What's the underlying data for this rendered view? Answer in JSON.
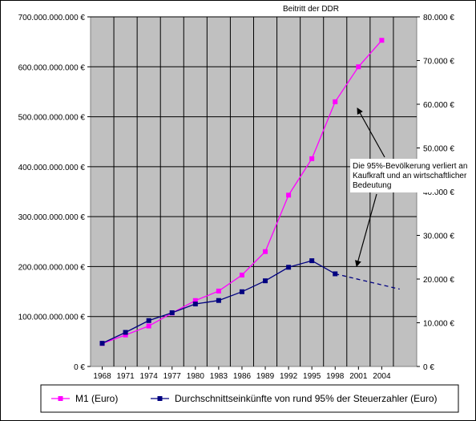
{
  "chart_data": {
    "type": "line",
    "categories": [
      "1968",
      "1971",
      "1974",
      "1977",
      "1980",
      "1983",
      "1986",
      "1989",
      "1992",
      "1995",
      "1998",
      "2001",
      "2004"
    ],
    "x": [
      1968,
      1971,
      1974,
      1977,
      1980,
      1983,
      1986,
      1989,
      1992,
      1995,
      1998,
      2001,
      2004
    ],
    "left_axis": {
      "ylim": [
        0,
        700000000000
      ],
      "ticks": [
        0,
        100000000000,
        200000000000,
        300000000000,
        400000000000,
        500000000000,
        600000000000,
        700000000000
      ],
      "tick_labels": [
        "0 €",
        "100.000.000.000 €",
        "200.000.000.000 €",
        "300.000.000.000 €",
        "400.000.000.000 €",
        "500.000.000.000 €",
        "600.000.000.000 €",
        "700.000.000.000 €"
      ]
    },
    "right_axis": {
      "ylim": [
        0,
        80000
      ],
      "ticks": [
        0,
        10000,
        20000,
        30000,
        40000,
        50000,
        60000,
        70000,
        80000
      ],
      "tick_labels": [
        "0 €",
        "10.000 €",
        "20.000 €",
        "30.000 €",
        "40.000 €",
        "50.000 €",
        "60.000 €",
        "70.000 €",
        "80.000 €"
      ]
    },
    "grid": true,
    "legend_position": "bottom",
    "series": [
      {
        "name": "M1 (Euro)",
        "axis": "left",
        "color": "#ff00ff",
        "x": [
          1968,
          1971,
          1974,
          1977,
          1980,
          1983,
          1986,
          1989,
          1992,
          1995,
          1998,
          2001,
          2004
        ],
        "values": [
          46000000000,
          63000000000,
          81000000000,
          107000000000,
          132000000000,
          151000000000,
          183000000000,
          230000000000,
          343000000000,
          416000000000,
          530000000000,
          600000000000,
          653000000000
        ]
      },
      {
        "name": "Durchschnittseinkünfte von rund 95% der Steuerzahler (Euro)",
        "axis": "right",
        "color": "#000080",
        "x": [
          1968,
          1971,
          1974,
          1977,
          1980,
          1983,
          1986,
          1989,
          1992,
          1995,
          1998
        ],
        "values": [
          5300,
          7800,
          10500,
          12300,
          14300,
          15100,
          17100,
          19600,
          22700,
          24200,
          21200
        ],
        "projection": {
          "x": [
            1998,
            2006.3
          ],
          "values": [
            21200,
            17700
          ]
        }
      }
    ],
    "annotations": [
      {
        "text": "Beitritt der DDR",
        "x": 1990
      },
      {
        "text_lines": [
          "Die 95%-Bevölkerung verliert an",
          "Kaufkraft und an wirtschaftlicher",
          "Bedeutung"
        ]
      }
    ]
  }
}
